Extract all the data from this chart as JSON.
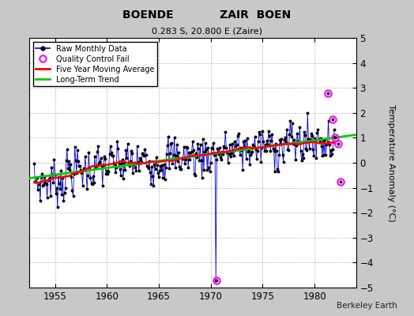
{
  "title": "BOENDE            ZAIR  BOEN",
  "subtitle": "0.283 S, 20.800 E (Zaire)",
  "ylabel": "Temperature Anomaly (°C)",
  "xlabel_note": "Berkeley Earth",
  "xlim": [
    1952.5,
    1984.0
  ],
  "ylim": [
    -5,
    5
  ],
  "yticks": [
    -5,
    -4,
    -3,
    -2,
    -1,
    0,
    1,
    2,
    3,
    4,
    5
  ],
  "xticks": [
    1955,
    1960,
    1965,
    1970,
    1975,
    1980
  ],
  "bg_color": "#c8c8c8",
  "plot_bg_color": "#ffffff",
  "raw_line_color": "#0000dd",
  "raw_dot_color": "#000000",
  "qc_fail_color": "#ff00ff",
  "moving_avg_color": "#ff0000",
  "trend_color": "#00cc00",
  "trend_x": [
    1952.5,
    1984.0
  ],
  "trend_y": [
    -0.62,
    1.12
  ],
  "qc_fail_points": [
    [
      1970.583,
      -4.7
    ],
    [
      1981.25,
      2.8
    ],
    [
      1981.75,
      1.75
    ],
    [
      1982.0,
      1.0
    ],
    [
      1982.25,
      0.75
    ],
    [
      1982.5,
      -0.75
    ]
  ]
}
